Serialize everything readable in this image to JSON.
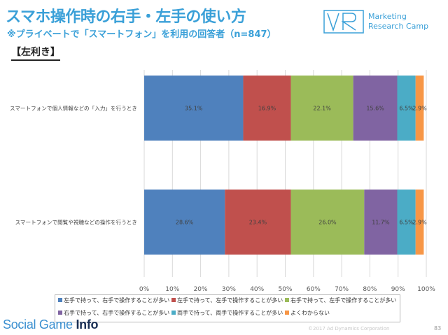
{
  "header": {
    "title": "スマホ操作時の右手・左手の使い方",
    "subtitle": "※プライベートで「スマートフォン」を利用の回答者（n=847）",
    "section_label": "【左利き】"
  },
  "logo": {
    "line1": "Marketing",
    "line2": "Research Camp",
    "color": "#3aa0d8"
  },
  "chart_data": {
    "type": "bar",
    "orientation": "horizontal",
    "stacked": true,
    "categories": [
      "スマートフォンで個人情報などの「入力」を行うとき",
      "スマートフォンで閲覧や視聴などの操作を行うとき"
    ],
    "series": [
      {
        "name": "左手で持って、右手で操作することが多い",
        "values": [
          35.1,
          28.6
        ],
        "color": "#4f81bd"
      },
      {
        "name": "左手で持って、左手で操作することが多い",
        "values": [
          16.9,
          23.4
        ],
        "color": "#c0504d"
      },
      {
        "name": "右手で持って、左手で操作することが多い",
        "values": [
          22.1,
          26.0
        ],
        "color": "#9bbb59"
      },
      {
        "name": "右手で持って、右手で操作することが多い",
        "values": [
          15.6,
          11.7
        ],
        "color": "#8064a2"
      },
      {
        "name": "両手で持って、両手で操作することが多い",
        "values": [
          6.5,
          6.5
        ],
        "color": "#4bacc6"
      },
      {
        "name": "よくわからない",
        "values": [
          2.9,
          2.9
        ],
        "color": "#f79646"
      }
    ],
    "data_labels": [
      [
        "35.1%",
        "16.9%",
        "22.1%",
        "15.6%",
        "6.5%",
        "2.9%"
      ],
      [
        "28.6%",
        "23.4%",
        "26.0%",
        "11.7%",
        "6.5%",
        "2.9%"
      ]
    ],
    "xlim": [
      0,
      100
    ],
    "xticks": [
      "0%",
      "10%",
      "20%",
      "30%",
      "40%",
      "50%",
      "60%",
      "70%",
      "80%",
      "90%",
      "100%"
    ],
    "grid": true,
    "legend_position": "bottom"
  },
  "footer": {
    "watermark_part1": "Social Game ",
    "watermark_part2": "Info",
    "copyright": "©2017 Ad Dynamics Corporation",
    "page": "83"
  }
}
